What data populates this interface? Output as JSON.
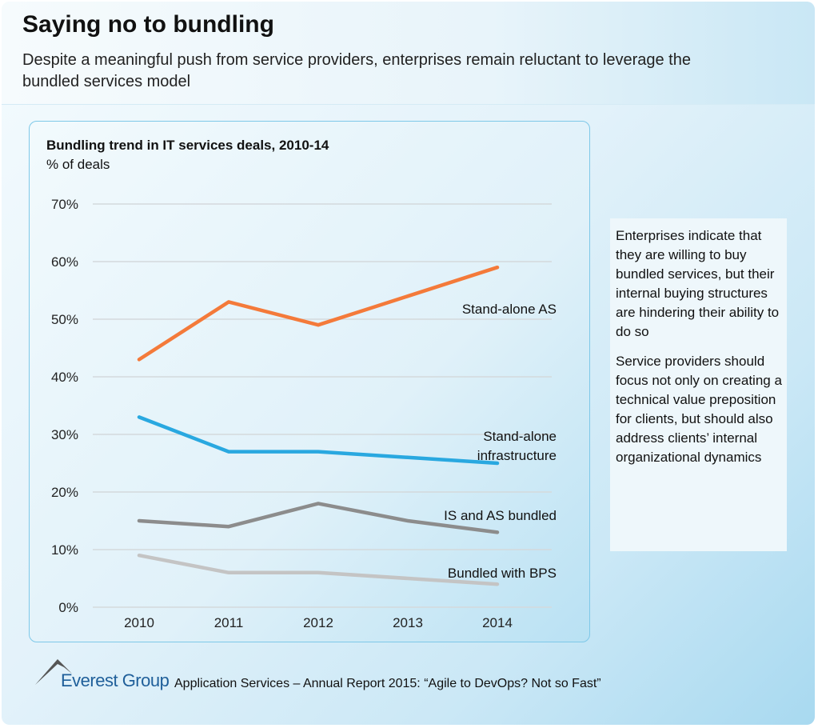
{
  "header": {
    "title": "Saying no to bundling",
    "subtitle": "Despite a meaningful push from service providers, enterprises remain reluctant to leverage the bundled services model"
  },
  "chart_data": {
    "type": "line",
    "title": "Bundling trend in IT services deals, 2010-14",
    "ylabel": "% of deals",
    "categories": [
      "2010",
      "2011",
      "2012",
      "2013",
      "2014"
    ],
    "ylim": [
      0,
      70
    ],
    "yticks": [
      "0%",
      "10%",
      "20%",
      "30%",
      "40%",
      "50%",
      "60%",
      "70%"
    ],
    "grid": true,
    "series": [
      {
        "name": "Stand-alone AS",
        "values": [
          43,
          53,
          49,
          54,
          59
        ],
        "color": "#f47a3a"
      },
      {
        "name": "Stand-alone infrastructure",
        "values": [
          33,
          27,
          27,
          26,
          25
        ],
        "color": "#29a8e0"
      },
      {
        "name": "IS and AS bundled",
        "values": [
          15,
          14,
          18,
          15,
          13
        ],
        "color": "#8c8c8c"
      },
      {
        "name": "Bundled with BPS",
        "values": [
          9,
          6,
          6,
          5,
          4
        ],
        "color": "#c4c4c4"
      }
    ]
  },
  "notes": [
    "Enterprises indicate that they are willing to buy bundled services, but their internal buying structures are hindering their ability to do so",
    "Service providers should focus not only on creating a technical value preposition for clients, but should also address clients’ internal organizational dynamics"
  ],
  "footer": {
    "logo": "Everest Group",
    "source": "Application Services – Annual Report 2015: “Agile to DevOps? Not so Fast”"
  }
}
